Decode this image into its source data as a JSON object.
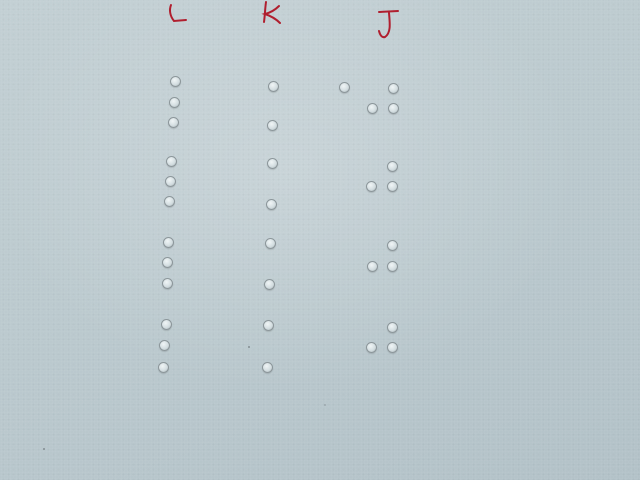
{
  "photo": {
    "description_color": "#bccacf",
    "ink_color": "#b01e2e",
    "hole_border_color": "#8c969a"
  },
  "column_labels": [
    {
      "name": "l-letter-label",
      "text": "L"
    },
    {
      "name": "k-letter-label",
      "text": "K"
    },
    {
      "name": "j-letter-label",
      "text": "J"
    }
  ]
}
